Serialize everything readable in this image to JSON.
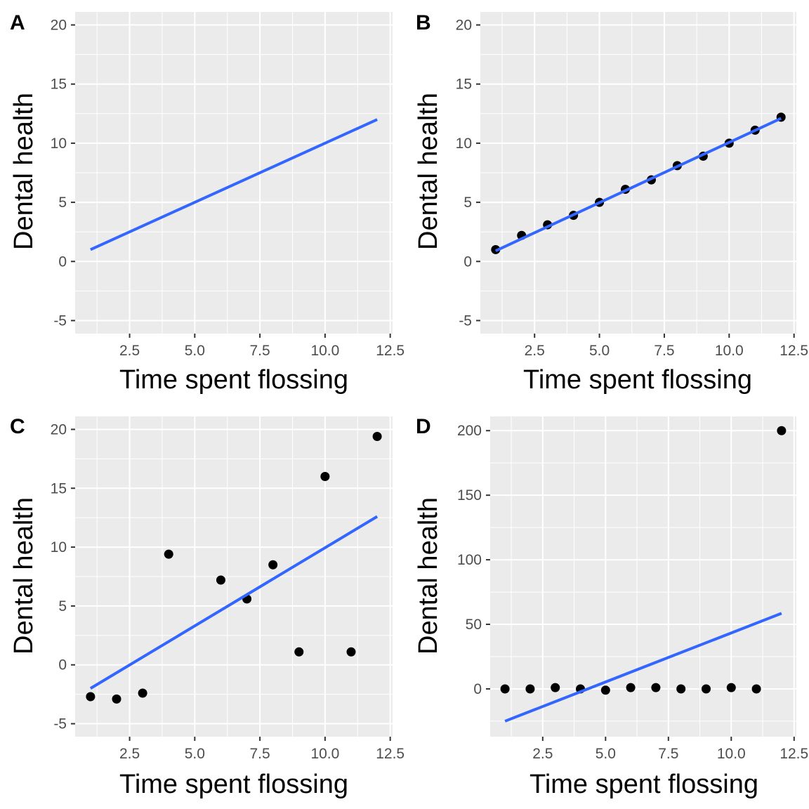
{
  "chart_data": [
    {
      "panel": "A",
      "type": "line",
      "xlabel": "Time spent flossing",
      "ylabel": "Dental health",
      "xlim": [
        0.41,
        12.59
      ],
      "ylim": [
        -6.1,
        21.1
      ],
      "xticks": [
        2.5,
        5.0,
        7.5,
        10.0,
        12.5
      ],
      "xtick_labels": [
        "2.5",
        "5.0",
        "7.5",
        "10.0",
        "12.5"
      ],
      "yticks": [
        -5,
        0,
        5,
        10,
        15,
        20
      ],
      "ytick_labels": [
        "-5",
        "0",
        "5",
        "10",
        "15",
        "20"
      ],
      "points": [],
      "fit": {
        "x": [
          1,
          12
        ],
        "y": [
          1.0,
          12.0
        ]
      }
    },
    {
      "panel": "B",
      "type": "scatter",
      "xlabel": "Time spent flossing",
      "ylabel": "Dental health",
      "xlim": [
        0.41,
        12.59
      ],
      "ylim": [
        -6.1,
        21.1
      ],
      "xticks": [
        2.5,
        5.0,
        7.5,
        10.0,
        12.5
      ],
      "xtick_labels": [
        "2.5",
        "5.0",
        "7.5",
        "10.0",
        "12.5"
      ],
      "yticks": [
        -5,
        0,
        5,
        10,
        15,
        20
      ],
      "ytick_labels": [
        "-5",
        "0",
        "5",
        "10",
        "15",
        "20"
      ],
      "points": {
        "x": [
          1,
          2,
          3,
          4,
          5,
          6,
          7,
          8,
          9,
          10,
          11,
          12
        ],
        "y": [
          1.0,
          2.2,
          3.1,
          3.9,
          5.0,
          6.1,
          6.9,
          8.1,
          8.9,
          10.0,
          11.1,
          12.2
        ]
      },
      "fit": {
        "x": [
          1,
          12
        ],
        "y": [
          0.9,
          12.1
        ]
      }
    },
    {
      "panel": "C",
      "type": "scatter",
      "xlabel": "Time spent flossing",
      "ylabel": "Dental health",
      "xlim": [
        0.41,
        12.59
      ],
      "ylim": [
        -6.1,
        21.1
      ],
      "xticks": [
        2.5,
        5.0,
        7.5,
        10.0,
        12.5
      ],
      "xtick_labels": [
        "2.5",
        "5.0",
        "7.5",
        "10.0",
        "12.5"
      ],
      "yticks": [
        -5,
        0,
        5,
        10,
        15,
        20
      ],
      "ytick_labels": [
        "-5",
        "0",
        "5",
        "10",
        "15",
        "20"
      ],
      "points": {
        "x": [
          1,
          2,
          3,
          4,
          6,
          7,
          8,
          9,
          10,
          11,
          12
        ],
        "y": [
          -2.7,
          -2.9,
          -2.4,
          9.4,
          7.2,
          5.6,
          8.5,
          1.1,
          16.0,
          1.1,
          19.4
        ]
      },
      "fit": {
        "x": [
          1,
          12
        ],
        "y": [
          -2.0,
          12.6
        ]
      }
    },
    {
      "panel": "D",
      "type": "scatter",
      "xlabel": "Time spent flossing",
      "ylabel": "Dental health",
      "xlim": [
        0.41,
        12.59
      ],
      "ylim": [
        -37,
        211
      ],
      "xticks": [
        2.5,
        5.0,
        7.5,
        10.0,
        12.5
      ],
      "xtick_labels": [
        "2.5",
        "5.0",
        "7.5",
        "10.0",
        "12.5"
      ],
      "yticks": [
        0,
        50,
        100,
        150,
        200
      ],
      "ytick_labels": [
        "0",
        "50",
        "100",
        "150",
        "200"
      ],
      "points": {
        "x": [
          1,
          2,
          3,
          4,
          5,
          6,
          7,
          8,
          9,
          10,
          11,
          12
        ],
        "y": [
          0,
          0,
          1,
          0,
          -1,
          1,
          1,
          0,
          0,
          1,
          0,
          200
        ]
      },
      "fit": {
        "x": [
          1,
          12
        ],
        "y": [
          -25,
          58.5
        ]
      }
    }
  ]
}
